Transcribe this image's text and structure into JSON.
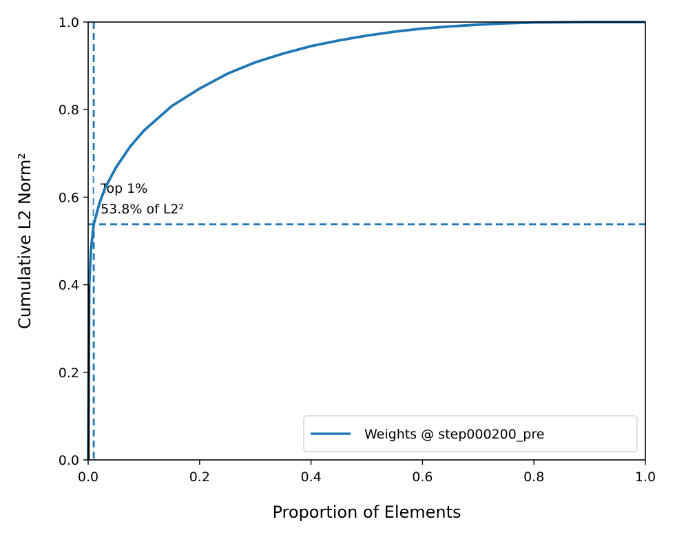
{
  "chart_data": {
    "type": "line",
    "xlabel": "Proportion of Elements",
    "ylabel": "Cumulative L2 Norm²",
    "xlim": [
      0,
      1
    ],
    "ylim": [
      0,
      1
    ],
    "x_ticks": [
      "0.0",
      "0.2",
      "0.4",
      "0.6",
      "0.8",
      "1.0"
    ],
    "y_ticks": [
      "0.0",
      "0.2",
      "0.4",
      "0.6",
      "0.8",
      "1.0"
    ],
    "grid": false,
    "legend_position": "lower-right",
    "series": [
      {
        "name": "Weights @ step000200_pre",
        "color": "#1f77b4",
        "x": [
          0,
          0.002,
          0.005,
          0.01,
          0.02,
          0.03,
          0.05,
          0.075,
          0.1,
          0.15,
          0.2,
          0.25,
          0.3,
          0.35,
          0.4,
          0.45,
          0.5,
          0.55,
          0.6,
          0.65,
          0.7,
          0.75,
          0.8,
          0.85,
          0.9,
          0.95,
          1.0
        ],
        "y": [
          0,
          0.4,
          0.48,
          0.538,
          0.585,
          0.62,
          0.668,
          0.715,
          0.752,
          0.808,
          0.848,
          0.882,
          0.908,
          0.928,
          0.945,
          0.958,
          0.969,
          0.978,
          0.985,
          0.99,
          0.994,
          0.997,
          0.999,
          0.9995,
          1.0,
          1.0,
          1.0
        ]
      }
    ],
    "reference_lines": {
      "color": "#1f77b4",
      "vertical_x": 0.01,
      "horizontal_y": 0.538
    },
    "annotation": {
      "line1": "Top 1%",
      "line2": "53.8% of L2²",
      "x": 0.01,
      "y": 0.538
    }
  }
}
